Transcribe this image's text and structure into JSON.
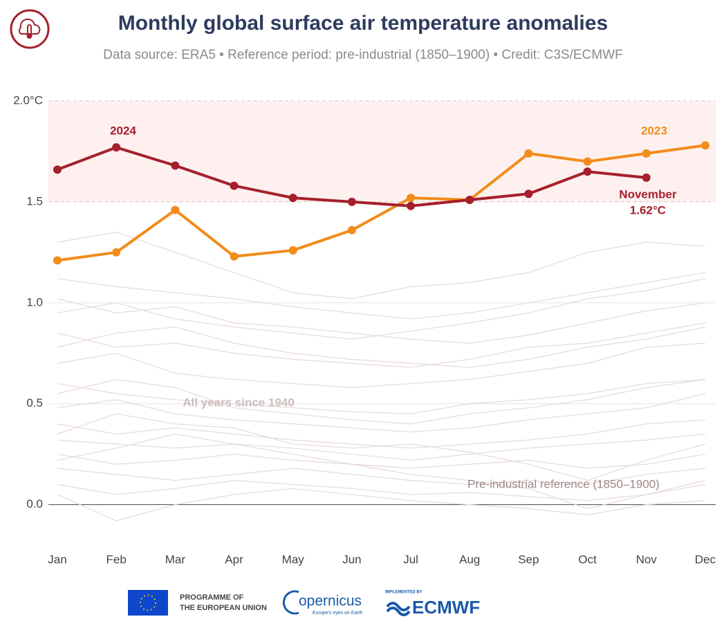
{
  "chart_data": {
    "type": "line",
    "title": "Monthly global surface air temperature anomalies",
    "subtitle": "Data source: ERA5 • Reference period: pre-industrial (1850–1900) • Credit: C3S/ECMWF",
    "categories": [
      "Jan",
      "Feb",
      "Mar",
      "Apr",
      "May",
      "Jun",
      "Jul",
      "Aug",
      "Sep",
      "Oct",
      "Nov",
      "Dec"
    ],
    "series": [
      {
        "name": "2023",
        "color": "#f28c1a",
        "values": [
          1.21,
          1.25,
          1.46,
          1.23,
          1.26,
          1.36,
          1.52,
          1.51,
          1.74,
          1.7,
          1.74,
          1.78
        ]
      },
      {
        "name": "2024",
        "color": "#a51f2c",
        "values": [
          1.66,
          1.77,
          1.68,
          1.58,
          1.52,
          1.5,
          1.48,
          1.51,
          1.54,
          1.65,
          1.62,
          null
        ]
      }
    ],
    "background_color": "#e6d9d9",
    "background_series": [
      [
        1.12,
        1.08,
        1.05,
        1.02,
        0.98,
        0.95,
        0.92,
        0.95,
        1.0,
        1.05,
        1.1,
        1.15
      ],
      [
        1.3,
        1.35,
        1.25,
        1.15,
        1.05,
        1.02,
        1.08,
        1.1,
        1.15,
        1.25,
        1.3,
        1.28
      ],
      [
        0.95,
        1.0,
        0.92,
        0.88,
        0.85,
        0.82,
        0.86,
        0.9,
        0.95,
        1.02,
        1.06,
        1.12
      ],
      [
        0.85,
        0.78,
        0.8,
        0.75,
        0.72,
        0.7,
        0.68,
        0.72,
        0.78,
        0.8,
        0.85,
        0.9
      ],
      [
        0.7,
        0.75,
        0.65,
        0.62,
        0.6,
        0.58,
        0.6,
        0.62,
        0.66,
        0.7,
        0.78,
        0.8
      ],
      [
        0.6,
        0.55,
        0.52,
        0.5,
        0.48,
        0.46,
        0.45,
        0.5,
        0.52,
        0.55,
        0.6,
        0.62
      ],
      [
        0.48,
        0.52,
        0.45,
        0.42,
        0.4,
        0.38,
        0.36,
        0.38,
        0.42,
        0.45,
        0.48,
        0.55
      ],
      [
        0.4,
        0.35,
        0.38,
        0.35,
        0.32,
        0.3,
        0.28,
        0.3,
        0.32,
        0.35,
        0.4,
        0.42
      ],
      [
        0.32,
        0.3,
        0.28,
        0.3,
        0.28,
        0.25,
        0.22,
        0.25,
        0.28,
        0.3,
        0.32,
        0.35
      ],
      [
        0.25,
        0.2,
        0.22,
        0.25,
        0.22,
        0.2,
        0.18,
        0.2,
        0.22,
        0.18,
        0.2,
        0.25
      ],
      [
        0.18,
        0.15,
        0.12,
        0.15,
        0.18,
        0.15,
        0.12,
        0.1,
        0.12,
        0.1,
        0.15,
        0.18
      ],
      [
        0.1,
        0.05,
        0.08,
        0.12,
        0.1,
        0.08,
        0.05,
        0.06,
        0.04,
        0.02,
        0.05,
        0.1
      ],
      [
        0.05,
        -0.08,
        0.0,
        0.05,
        0.08,
        0.05,
        0.02,
        0.0,
        -0.02,
        -0.05,
        0.0,
        0.02
      ],
      [
        0.55,
        0.62,
        0.58,
        0.48,
        0.45,
        0.42,
        0.4,
        0.45,
        0.48,
        0.52,
        0.58,
        0.62
      ],
      [
        0.78,
        0.85,
        0.88,
        0.8,
        0.75,
        0.72,
        0.7,
        0.68,
        0.72,
        0.78,
        0.82,
        0.88
      ],
      [
        0.35,
        0.45,
        0.4,
        0.38,
        0.3,
        0.28,
        0.3,
        0.26,
        0.2,
        0.12,
        0.22,
        0.3
      ],
      [
        1.02,
        0.95,
        0.98,
        0.9,
        0.88,
        0.85,
        0.82,
        0.8,
        0.84,
        0.9,
        0.96,
        1.0
      ],
      [
        0.22,
        0.28,
        0.35,
        0.3,
        0.25,
        0.2,
        0.15,
        0.12,
        0.08,
        -0.02,
        0.05,
        0.12
      ]
    ],
    "ylim": [
      -0.2,
      2.0
    ],
    "yticks": [
      {
        "value": 0,
        "label": "0.0"
      },
      0.5,
      {
        "value": 1,
        "label": "1.0"
      },
      1.5,
      {
        "value": 2,
        "label": "2.0°C"
      }
    ],
    "shaded_band": [
      1.5,
      2.0
    ],
    "band_color": "#fdf0ee",
    "grid": true,
    "annotations": {
      "label_2024": "2024",
      "label_2023": "2023",
      "last_month": "November",
      "last_value": "1.62°C",
      "all_years": "All years since 1940",
      "reference": "Pre-industrial reference (1850–1900)"
    }
  },
  "footer": {
    "eu_line1": "PROGRAMME OF",
    "eu_line2": "THE EUROPEAN UNION",
    "copernicus": "opernicus",
    "copernicus_tagline": "Europe's eyes on Earth",
    "implemented_by": "IMPLEMENTED BY",
    "ecmwf": "ECMWF"
  }
}
